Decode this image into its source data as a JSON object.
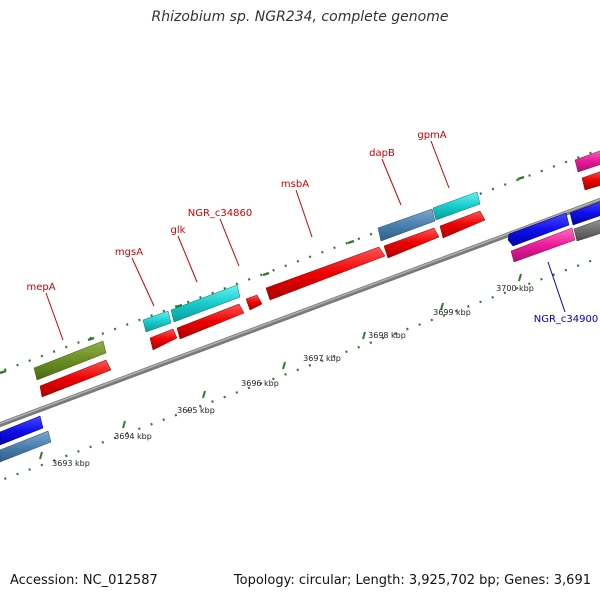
{
  "header": {
    "title": "Rhizobium sp. NGR234, complete genome"
  },
  "footer": {
    "accession": "Accession: NC_012587",
    "summary": "Topology: circular; Length: 3,925,702 bp; Genes: 3,691"
  },
  "colors": {
    "backbone": "#8a8a8a",
    "tick": "#2f7a2f",
    "label_forward": "#cc0000",
    "label_reverse": "#0000bb"
  },
  "scale_labels": [
    {
      "text": "3693 kbp"
    },
    {
      "text": "3694 kbp"
    },
    {
      "text": "3695 kbp"
    },
    {
      "text": "3696 kbp"
    },
    {
      "text": "3697 kbp"
    },
    {
      "text": "3698 kbp"
    },
    {
      "text": "3699 kbp"
    },
    {
      "text": "3700 kbp"
    }
  ],
  "gene_labels": [
    {
      "text": "mepA"
    },
    {
      "text": "mgsA"
    },
    {
      "text": "glk"
    },
    {
      "text": "NGR_c34860"
    },
    {
      "text": "msbA"
    },
    {
      "text": "dapB"
    },
    {
      "text": "gpmA"
    },
    {
      "text": "NGR_c34900"
    }
  ]
}
